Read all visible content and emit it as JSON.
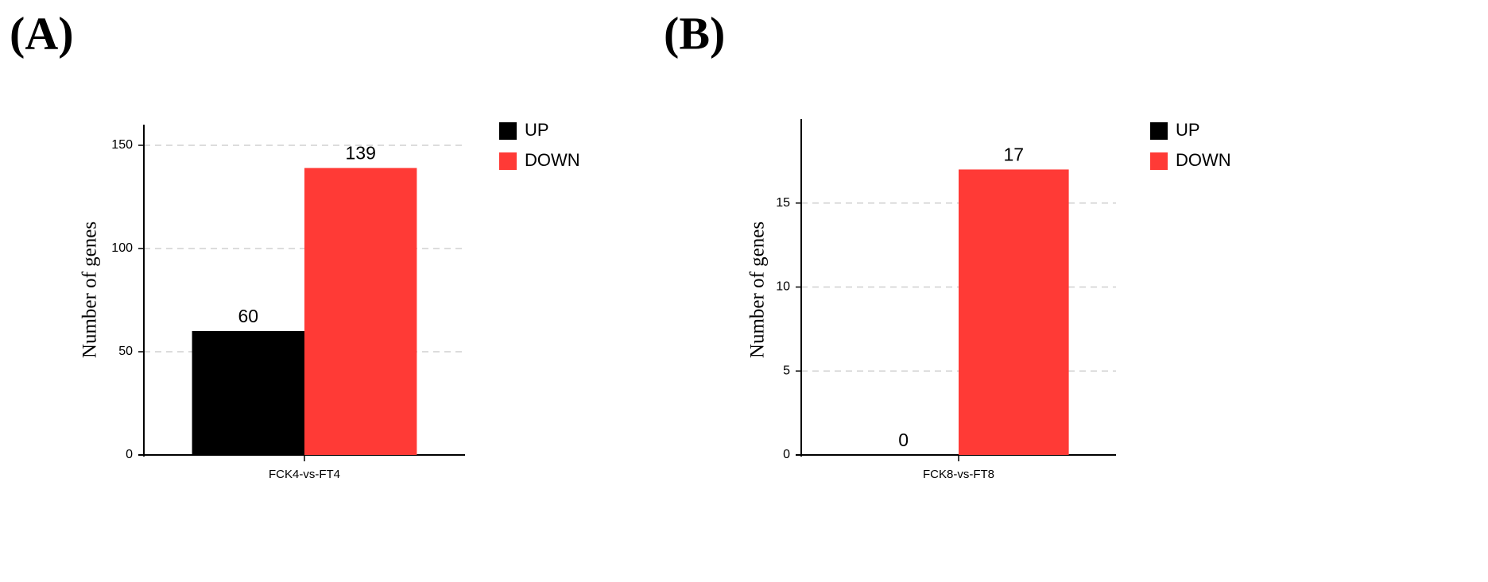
{
  "chart_data": [
    {
      "type": "bar",
      "title": "(A)",
      "ylabel": "Number of genes",
      "categories": [
        "FCK4-vs-FT4"
      ],
      "series": [
        {
          "name": "UP",
          "color": "#000000",
          "values": [
            60
          ]
        },
        {
          "name": "DOWN",
          "color": "#ff3a36",
          "values": [
            139
          ]
        }
      ],
      "ylim": [
        0,
        160
      ],
      "yticks": [
        0,
        50,
        100,
        150
      ],
      "grid": true,
      "legend": "right"
    },
    {
      "type": "bar",
      "title": "(B)",
      "ylabel": "Number of genes",
      "categories": [
        "FCK8-vs-FT8"
      ],
      "series": [
        {
          "name": "UP",
          "color": "#000000",
          "values": [
            0
          ]
        },
        {
          "name": "DOWN",
          "color": "#ff3a36",
          "values": [
            17
          ]
        }
      ],
      "ylim": [
        0,
        20
      ],
      "yticks": [
        0,
        5,
        10,
        15
      ],
      "grid": true,
      "legend": "right"
    }
  ]
}
